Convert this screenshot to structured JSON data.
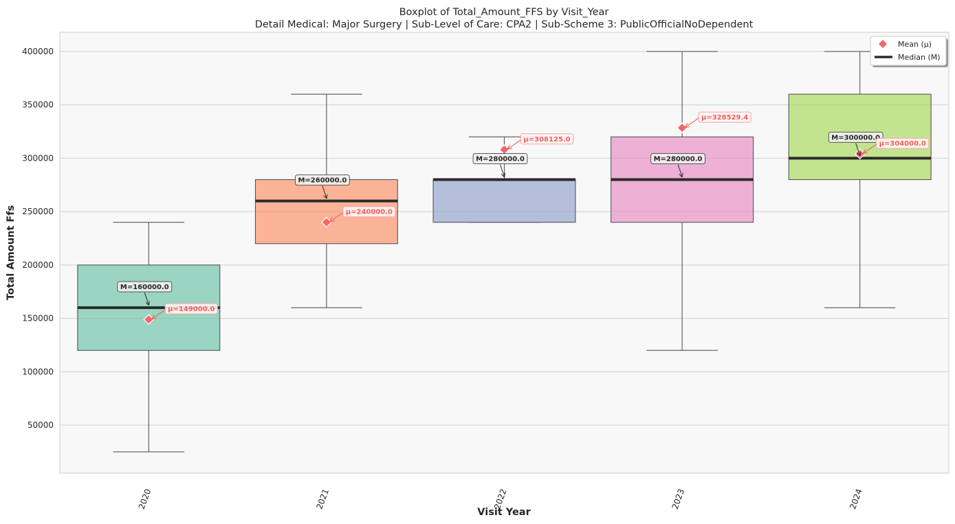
{
  "chart_data": {
    "type": "box",
    "title": "Boxplot of Total_Amount_FFS by Visit_Year",
    "subtitle": "Detail Medical: Major Surgery | Sub-Level of Care: CPA2 | Sub-Scheme 3: PublicOfficialNoDependent",
    "xlabel": "Visit Year",
    "ylabel": "Total Amount Ffs",
    "ylim": [
      5000,
      418000
    ],
    "yticks": [
      50000,
      100000,
      150000,
      200000,
      250000,
      300000,
      350000,
      400000
    ],
    "ytick_labels": [
      "50000",
      "100000",
      "150000",
      "200000",
      "250000",
      "300000",
      "350000",
      "400000"
    ],
    "grid": true,
    "legend_position": "top-right",
    "legend": [
      {
        "label": "Mean (μ)",
        "marker": "diamond",
        "color": "#f4676b"
      },
      {
        "label": "Median (M)",
        "marker": "line",
        "color": "#2b2b2b"
      }
    ],
    "categories": [
      "2020",
      "2021",
      "2022",
      "2023",
      "2024"
    ],
    "boxes": [
      {
        "category": "2020",
        "whisker_low": 25000,
        "q1": 120000,
        "median": 160000,
        "q3": 200000,
        "whisker_high": 240000,
        "mean": 149000,
        "median_label": "M=160000.0",
        "mean_label": "μ=149000.0",
        "color": "#66c2a5"
      },
      {
        "category": "2021",
        "whisker_low": 160000,
        "q1": 220000,
        "median": 260000,
        "q3": 280000,
        "whisker_high": 360000,
        "mean": 240000,
        "median_label": "M=260000.0",
        "mean_label": "μ=240000.0",
        "color": "#fc8d62"
      },
      {
        "category": "2022",
        "whisker_low": 240000,
        "q1": 240000,
        "median": 280000,
        "q3": 280000,
        "whisker_high": 320000,
        "mean": 308125,
        "median_label": "M=280000.0",
        "mean_label": "μ=308125.0",
        "color": "#8da0cb"
      },
      {
        "category": "2023",
        "whisker_low": 120000,
        "q1": 240000,
        "median": 280000,
        "q3": 320000,
        "whisker_high": 400000,
        "mean": 328529.4,
        "median_label": "M=280000.0",
        "mean_label": "μ=328529.4",
        "color": "#e78ac3"
      },
      {
        "category": "2024",
        "whisker_low": 160000,
        "q1": 280000,
        "median": 300000,
        "q3": 360000,
        "whisker_high": 400000,
        "mean": 304000,
        "median_label": "M=300000.0",
        "mean_label": "μ=304000.0",
        "color": "#a6d854"
      }
    ]
  }
}
